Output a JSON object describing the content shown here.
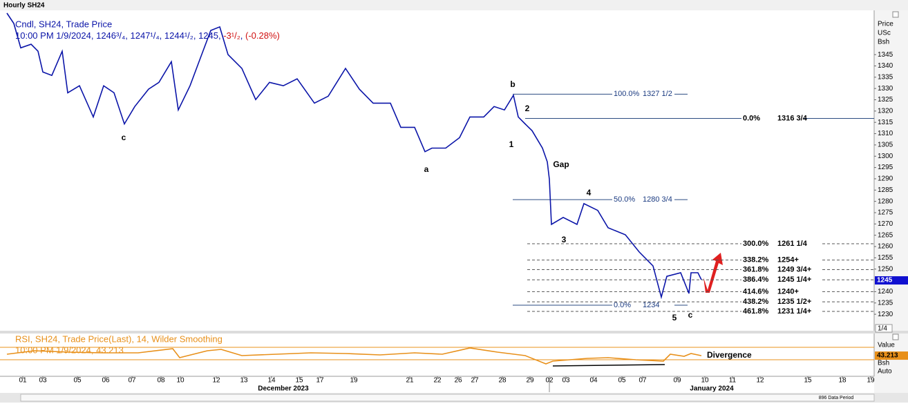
{
  "window_title": "Hourly SH24",
  "price_header": [
    "Price",
    "USc",
    "Bsh"
  ],
  "rsi_header": [
    "Value",
    "Bsh",
    "Auto"
  ],
  "page_indicator": "1/4",
  "data_period": "896 Data Period",
  "chart_data": [
    {
      "type": "line",
      "legend": {
        "name": "Cndl, SH24, Trade Price",
        "time": "10:00 PM 1/9/2024",
        "open": "1246³/₄",
        "high": "1247¹/₄",
        "low": "1244¹/₂",
        "close": "1245",
        "change": "-3¹/₂",
        "change_pct": "(-0.28%)"
      },
      "x": [
        2,
        4,
        6,
        9,
        11,
        12.4,
        15,
        18,
        19.6,
        23,
        27,
        30,
        33,
        36,
        39,
        43,
        46,
        49.6,
        51.6,
        55,
        58,
        61,
        63.6,
        66,
        70,
        74,
        78,
        82,
        86,
        91,
        95,
        100,
        104,
        108,
        113,
        116,
        120,
        123,
        125,
        129,
        133,
        136,
        140,
        143,
        146,
        148.6,
        150,
        152,
        154,
        157,
        158.4,
        159,
        159.6,
        163,
        167,
        169,
        173,
        176,
        181,
        185,
        189,
        191.4,
        193,
        197,
        199.4,
        200,
        202,
        203
      ],
      "series": [
        {
          "name": "Cndl, SH24, Trade Price",
          "color": "#0a14a8",
          "values": [
            1363.4,
            1358.8,
            1348,
            1349.6,
            1346.5,
            1337.3,
            1335.8,
            1346.5,
            1328.1,
            1331.2,
            1317.4,
            1331.2,
            1328.1,
            1314.3,
            1322,
            1329.7,
            1332.7,
            1341.9,
            1320.5,
            1331.2,
            1343.5,
            1355.7,
            1357.3,
            1345,
            1338.9,
            1325.1,
            1332.7,
            1331.2,
            1334.3,
            1323.5,
            1326.6,
            1338.9,
            1329.7,
            1323.5,
            1323.5,
            1312.8,
            1312.8,
            1302,
            1303.6,
            1303.6,
            1308.2,
            1317.4,
            1317.4,
            1322,
            1320.5,
            1327,
            1317.4,
            1314.3,
            1311.3,
            1303.6,
            1297.5,
            1289.8,
            1269.8,
            1272.9,
            1269.8,
            1279,
            1276,
            1268.3,
            1265.2,
            1257.6,
            1251.4,
            1237.6,
            1246.8,
            1248.4,
            1239.2,
            1248.4,
            1248.4,
            1245.3
          ]
        }
      ],
      "last_value": 1245,
      "xlim": [
        0,
        253
      ],
      "ylim": [
        1223,
        1364
      ],
      "yticks": [
        1230,
        1235,
        1240,
        1250,
        1255,
        1260,
        1265,
        1270,
        1275,
        1280,
        1285,
        1290,
        1295,
        1300,
        1305,
        1310,
        1315,
        1320,
        1325,
        1330,
        1335,
        1340,
        1345
      ],
      "xticks": [
        {
          "value": 6.6,
          "label": "01"
        },
        {
          "value": 12.4,
          "label": "03"
        },
        {
          "value": 22.4,
          "label": "05"
        },
        {
          "value": 30.6,
          "label": "06"
        },
        {
          "value": 38.2,
          "label": "07"
        },
        {
          "value": 46.6,
          "label": "08"
        },
        {
          "value": 52.2,
          "label": "10"
        },
        {
          "value": 62.6,
          "label": "12"
        },
        {
          "value": 70.6,
          "label": "13"
        },
        {
          "value": 78.6,
          "label": "14"
        },
        {
          "value": 86.6,
          "label": "15"
        },
        {
          "value": 92.6,
          "label": "17"
        },
        {
          "value": 102.4,
          "label": "19"
        },
        {
          "value": 118.6,
          "label": "21"
        },
        {
          "value": 126.6,
          "label": "22"
        },
        {
          "value": 132.6,
          "label": "26"
        },
        {
          "value": 137.4,
          "label": "27"
        },
        {
          "value": 145.4,
          "label": "28"
        },
        {
          "value": 153.4,
          "label": "29"
        },
        {
          "value": 159,
          "label": "02"
        },
        {
          "value": 163.8,
          "label": "03"
        },
        {
          "value": 171.8,
          "label": "04"
        },
        {
          "value": 180,
          "label": "05"
        },
        {
          "value": 186,
          "label": "07"
        },
        {
          "value": 196,
          "label": "09"
        },
        {
          "value": 204,
          "label": "10"
        },
        {
          "value": 212,
          "label": "11"
        },
        {
          "value": 220,
          "label": "12"
        },
        {
          "value": 233.8,
          "label": "15"
        },
        {
          "value": 243.8,
          "label": "18"
        },
        {
          "value": 252,
          "label": "19"
        }
      ],
      "month_labels": [
        {
          "value": 82,
          "label": "December 2023"
        },
        {
          "value": 206,
          "label": "January 2024"
        }
      ],
      "levels": [
        {
          "value": 1327.5,
          "pct": "100.0%",
          "label": "1327 1/2",
          "dashed": false
        },
        {
          "value": 1316.75,
          "pct": "0.0%",
          "label": "1316 3/4",
          "dashed": false
        },
        {
          "value": 1280.75,
          "pct": "50.0%",
          "label": "1280 3/4",
          "dashed": false
        },
        {
          "value": 1234,
          "pct": "0.0%",
          "label": "1234",
          "dashed": false
        },
        {
          "value": 1261.25,
          "pct": "300.0%",
          "label": "1261 1/4",
          "dashed": true
        },
        {
          "value": 1254,
          "pct": "338.2%",
          "label": "1254+",
          "dashed": true
        },
        {
          "value": 1249.75,
          "pct": "361.8%",
          "label": "1249 3/4+",
          "dashed": true
        },
        {
          "value": 1245.25,
          "pct": "386.4%",
          "label": "1245 1/4+",
          "dashed": true
        },
        {
          "value": 1240,
          "pct": "414.6%",
          "label": "1240+",
          "dashed": true
        },
        {
          "value": 1235.5,
          "pct": "438.2%",
          "label": "1235 1/2+",
          "dashed": true
        },
        {
          "value": 1231.25,
          "pct": "461.8%",
          "label": "1231 1/4+",
          "dashed": true
        }
      ],
      "wave_labels": [
        "c",
        "a",
        "b",
        "1",
        "2",
        "Gap",
        "4",
        "3",
        "5",
        "c"
      ]
    },
    {
      "type": "line",
      "title": "RSI, SH24, Trade Price(Last),  14, Wilder Smoothing",
      "subtitle": "10:00 PM 1/9/2024, 43.213",
      "x": [
        2,
        10,
        20,
        30,
        40,
        50,
        52,
        60,
        64,
        70,
        80,
        90,
        100,
        110,
        120,
        128,
        136,
        144,
        152,
        158,
        160,
        170,
        176,
        184,
        192,
        194,
        198,
        200,
        203
      ],
      "series": [
        {
          "name": "RSI",
          "color": "#e8901a",
          "values": [
            47.8,
            58.9,
            54.4,
            52.2,
            52.2,
            65.6,
            36.7,
            58.9,
            63.3,
            43.3,
            47.8,
            52.2,
            50,
            45.6,
            52.2,
            47.8,
            67.8,
            54.4,
            43.3,
            16.7,
            25.6,
            34.4,
            36.7,
            30,
            25.6,
            47.8,
            41.1,
            50,
            43.213
          ]
        }
      ],
      "last_value": 43.213,
      "annotation": "Divergence",
      "hlines": [
        70,
        30
      ],
      "xlim": [
        0,
        253
      ],
      "ylim": [
        0,
        100
      ]
    }
  ]
}
